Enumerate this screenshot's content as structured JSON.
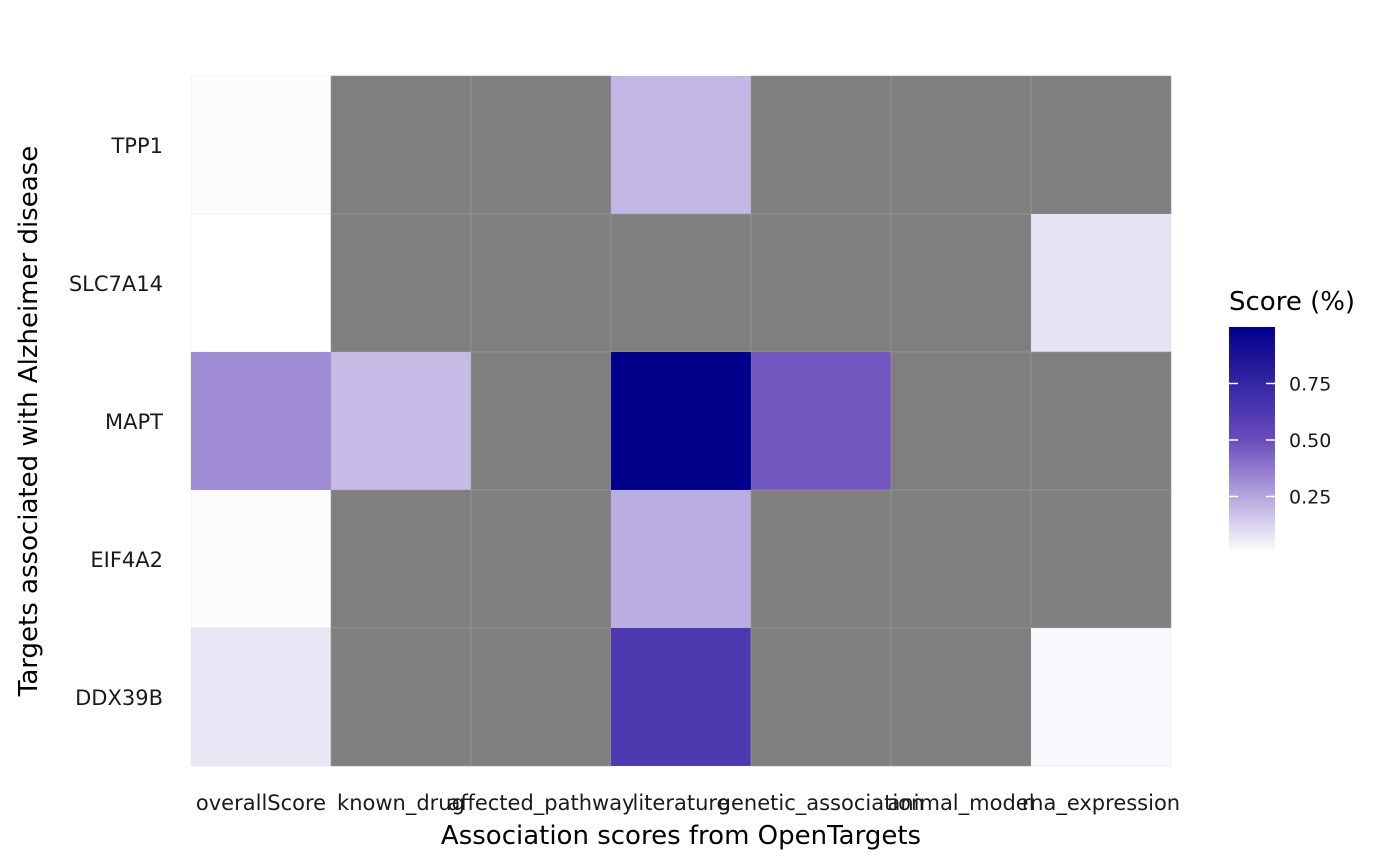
{
  "chart_data": {
    "type": "heatmap",
    "title": "",
    "xlabel": "Association scores from OpenTargets",
    "ylabel": "Targets associated with Alzheimer disease",
    "x_categories": [
      "overallScore",
      "known_drug",
      "affected_pathway",
      "literature",
      "genetic_association",
      "animal_model",
      "rna_expression"
    ],
    "y_categories": [
      "TPP1",
      "SLC7A14",
      "MAPT",
      "EIF4A2",
      "DDX39B"
    ],
    "values": [
      [
        0.01,
        null,
        null,
        0.2,
        null,
        null,
        null
      ],
      [
        0.0,
        null,
        null,
        null,
        null,
        null,
        0.08
      ],
      [
        0.32,
        0.19,
        null,
        1.0,
        0.47,
        null,
        null
      ],
      [
        0.01,
        null,
        null,
        0.23,
        null,
        null,
        null
      ],
      [
        0.07,
        null,
        null,
        0.63,
        null,
        null,
        0.02
      ]
    ],
    "na_color": "#7f7f7f",
    "color_low": "#ffffff",
    "color_mid": "#6a4cbd",
    "color_high": "#00008b",
    "legend": {
      "title": "Score (%)",
      "ticks": [
        0.25,
        0.5,
        0.75
      ],
      "tick_labels": [
        "0.25",
        "0.50",
        "0.75"
      ],
      "range": [
        0.0,
        1.0
      ],
      "position": "right"
    },
    "grid": false
  }
}
